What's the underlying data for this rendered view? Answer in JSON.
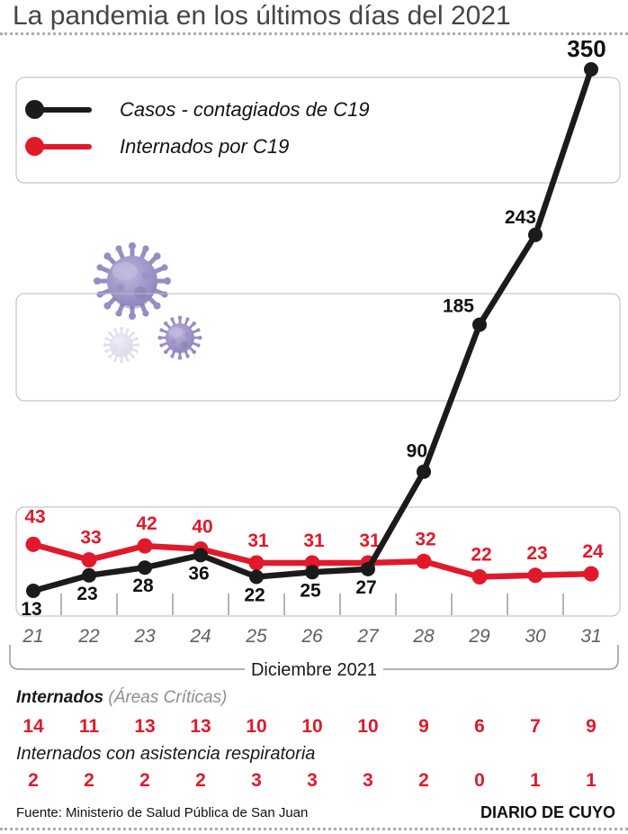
{
  "title": "La pandemia en los últimos días del 2021",
  "colors": {
    "cases": "#1b1b1b",
    "admitted": "#e1192b",
    "axis_text": "#606060",
    "band_border": "#b9b9b9"
  },
  "legend": [
    {
      "label": "Casos - contagiados de C19",
      "color": "#1b1b1b"
    },
    {
      "label": "Internados por C19",
      "color": "#e1192b"
    }
  ],
  "chart_data": {
    "type": "line",
    "x": [
      21,
      22,
      23,
      24,
      25,
      26,
      27,
      28,
      29,
      30,
      31
    ],
    "x_axis_label": "Diciembre 2021",
    "series": [
      {
        "name": "Casos - contagiados de C19",
        "color": "#1b1b1b",
        "values": [
          13,
          23,
          28,
          36,
          22,
          25,
          27,
          90,
          185,
          243,
          350
        ]
      },
      {
        "name": "Internados por C19",
        "color": "#e1192b",
        "values": [
          43,
          33,
          42,
          40,
          31,
          31,
          31,
          32,
          22,
          23,
          24
        ]
      }
    ],
    "ylim": [
      0,
      360
    ],
    "grid": "three bordered horizontal bands",
    "legend_position": "top-left inside plot",
    "data_labels": "every point labeled with its value"
  },
  "stats_rows": [
    {
      "label": "Internados",
      "label_note": "(Áreas Críticas)",
      "values": [
        14,
        11,
        13,
        13,
        10,
        10,
        10,
        9,
        6,
        7,
        9
      ]
    },
    {
      "label": "Internados con asistencia respiratoria",
      "label_note": "",
      "values": [
        2,
        2,
        2,
        2,
        3,
        3,
        3,
        2,
        0,
        1,
        1
      ]
    }
  ],
  "footer": {
    "source": "Fuente: Ministerio de Salud Pública de San Juan",
    "brand": "DIARIO DE CUYO"
  }
}
